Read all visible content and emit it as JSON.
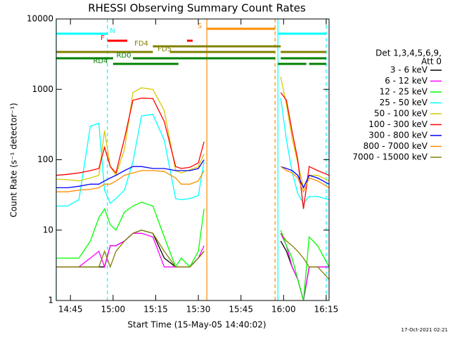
{
  "chart_data": {
    "type": "line",
    "title": "RHESSI Observing Summary Count Rates",
    "x_label": "Start Time (15-May-05 14:40:02)",
    "y_label": "Count Rate (s⁻¹ detector⁻¹)",
    "footer": "17-Oct-2021 02:21",
    "legend_title": [
      "Det 1,3,4,5,6,9,",
      "Att 0"
    ],
    "log_y": true,
    "xlim": [
      "14:40",
      "16:16"
    ],
    "xticks": [
      "14:45",
      "15:00",
      "15:15",
      "15:30",
      "15:45",
      "16:00",
      "16:15"
    ],
    "ylim": [
      1,
      10000
    ],
    "yticks": [
      1,
      10,
      100,
      1000,
      10000
    ],
    "x": [
      "14:40",
      "14:44",
      "14:48",
      "14:52",
      "14:55",
      "14:57",
      "14:59",
      "15:01",
      "15:04",
      "15:07",
      "15:10",
      "15:14",
      "15:18",
      "15:22",
      "15:24",
      "15:27",
      "15:30",
      "15:32",
      "15:45",
      "15:59",
      "16:01",
      "16:03",
      "16:05",
      "16:07",
      "16:09",
      "16:12",
      "16:16"
    ],
    "series": [
      {
        "name": "3 - 6 keV",
        "color": "#000000",
        "values": [
          3,
          3,
          3,
          3,
          3,
          3,
          6,
          6,
          7,
          9,
          10,
          9,
          4,
          3,
          3,
          3,
          4,
          5,
          null,
          7,
          5,
          3,
          2,
          1,
          3,
          3,
          3
        ]
      },
      {
        "name": "6 - 12 keV",
        "color": "#ff00ff",
        "values": [
          3,
          3,
          3,
          4,
          5,
          3,
          6,
          6,
          7,
          9,
          9,
          8,
          3,
          3,
          3,
          3,
          4,
          6,
          null,
          9,
          6,
          3,
          2,
          1,
          3,
          3,
          3
        ]
      },
      {
        "name": "12 - 25 keV",
        "color": "#00ff00",
        "values": [
          4,
          4,
          4,
          7,
          15,
          20,
          12,
          10,
          18,
          22,
          25,
          22,
          8,
          3,
          4,
          3,
          5,
          20,
          null,
          10,
          6,
          4,
          2,
          1,
          8,
          6,
          3
        ]
      },
      {
        "name": "25 - 50 keV",
        "color": "#00ffff",
        "values": [
          22,
          22,
          27,
          300,
          330,
          37,
          24,
          28,
          37,
          94,
          420,
          440,
          190,
          28,
          27,
          28,
          31,
          94,
          null,
          750,
          190,
          67,
          33,
          24,
          30,
          30,
          27
        ]
      },
      {
        "name": "50 - 100 keV",
        "color": "#d8c800",
        "values": [
          53,
          52,
          50,
          55,
          60,
          260,
          80,
          60,
          140,
          900,
          1050,
          1000,
          500,
          70,
          65,
          72,
          80,
          120,
          null,
          1500,
          600,
          200,
          90,
          40,
          60,
          60,
          50
        ]
      },
      {
        "name": "100 - 300 keV",
        "color": "#ff0000",
        "values": [
          60,
          62,
          65,
          70,
          75,
          150,
          80,
          65,
          200,
          700,
          750,
          740,
          350,
          80,
          75,
          78,
          90,
          180,
          null,
          900,
          700,
          250,
          100,
          20,
          80,
          70,
          60
        ]
      },
      {
        "name": "300 - 800 keV",
        "color": "#0000ff",
        "values": [
          40,
          40,
          42,
          45,
          45,
          50,
          55,
          60,
          70,
          80,
          80,
          75,
          75,
          70,
          70,
          70,
          75,
          100,
          null,
          80,
          75,
          70,
          60,
          40,
          60,
          55,
          45
        ]
      },
      {
        "name": "800 - 7000 keV",
        "color": "#ff8c00",
        "values": [
          35,
          35,
          37,
          38,
          40,
          45,
          45,
          50,
          60,
          65,
          70,
          70,
          68,
          55,
          45,
          45,
          50,
          70,
          null,
          80,
          70,
          65,
          55,
          35,
          55,
          50,
          40
        ]
      },
      {
        "name": "7000 - 15000 keV",
        "color": "#808000",
        "values": [
          3,
          3,
          3,
          3,
          3,
          5,
          3,
          5,
          7,
          9,
          10,
          9,
          5,
          3,
          3,
          3,
          4,
          5,
          null,
          9,
          7,
          6,
          5,
          4,
          3,
          3,
          2
        ]
      }
    ],
    "annotations": [
      {
        "label": "N",
        "color": "#00ffff",
        "intervals": [
          [
            "14:40",
            "14:58"
          ],
          [
            "15:58",
            "16:15"
          ]
        ]
      },
      {
        "label": "F",
        "color": "#ff0000",
        "intervals": [
          [
            "14:58",
            "15:05"
          ],
          [
            "15:26",
            "15:28"
          ]
        ]
      },
      {
        "label": "S",
        "color": "#ff8c00",
        "intervals": [
          [
            "15:33",
            "15:57"
          ]
        ]
      },
      {
        "label": "FD4",
        "color": "#808000",
        "intervals": [
          [
            "15:14",
            "15:59"
          ]
        ]
      },
      {
        "label": "FD5",
        "color": "#808000",
        "intervals": [
          [
            "14:40",
            "15:14"
          ],
          [
            "15:20",
            "15:57"
          ],
          [
            "15:59",
            "16:15"
          ]
        ]
      },
      {
        "label": "RD0",
        "color": "#008000",
        "intervals": [
          [
            "14:40",
            "15:00"
          ],
          [
            "15:07",
            "15:57"
          ],
          [
            "15:59",
            "16:15"
          ]
        ]
      },
      {
        "label": "RD4",
        "color": "#008000",
        "intervals": [
          [
            "15:00",
            "15:23"
          ],
          [
            "15:58",
            "16:08"
          ],
          [
            "16:09",
            "16:15"
          ]
        ]
      }
    ],
    "vlines": [
      {
        "x": "14:40",
        "color": "#00ffff",
        "dashed": false
      },
      {
        "x": "14:58",
        "color": "#00ffff",
        "dashed": true
      },
      {
        "x": "15:33",
        "color": "#ff8c00",
        "dashed": false
      },
      {
        "x": "15:57",
        "color": "#ff8c00",
        "dashed": true
      },
      {
        "x": "15:58",
        "color": "#00ffff",
        "dashed": false
      },
      {
        "x": "16:15",
        "color": "#00ffff",
        "dashed": true
      }
    ]
  }
}
